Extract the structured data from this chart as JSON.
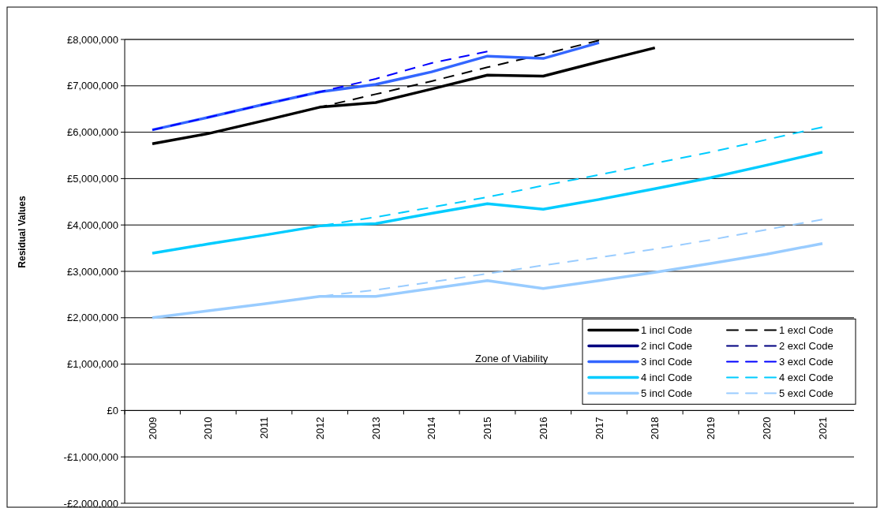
{
  "chart_data": {
    "type": "line",
    "ylabel": "Residual Values",
    "categories": [
      "2009",
      "2010",
      "2011",
      "2012",
      "2013",
      "2014",
      "2015",
      "2016",
      "2017",
      "2018",
      "2019",
      "2020",
      "2021"
    ],
    "ylim": [
      -2000000,
      8000000
    ],
    "yticks": [
      {
        "value": -2000000,
        "label": "-£2,000,000"
      },
      {
        "value": -1000000,
        "label": "-£1,000,000"
      },
      {
        "value": 0,
        "label": "£0"
      },
      {
        "value": 1000000,
        "label": "£1,000,000"
      },
      {
        "value": 2000000,
        "label": "£2,000,000"
      },
      {
        "value": 3000000,
        "label": "£3,000,000"
      },
      {
        "value": 4000000,
        "label": "£4,000,000"
      },
      {
        "value": 5000000,
        "label": "£5,000,000"
      },
      {
        "value": 6000000,
        "label": "£6,000,000"
      },
      {
        "value": 7000000,
        "label": "£7,000,000"
      },
      {
        "value": 8000000,
        "label": "£8,000,000"
      }
    ],
    "grid": "y",
    "legend": "bottom right",
    "annotations": [
      "Zone of Viability"
    ],
    "series": [
      {
        "name": "1 incl Code",
        "color": "#000000",
        "line_style": "solid",
        "values": [
          5750000,
          5970000,
          6250000,
          6540000,
          6640000,
          6930000,
          7230000,
          7210000,
          7520000,
          7820000,
          null,
          null,
          null
        ]
      },
      {
        "name": "1 excl Code",
        "color": "#000000",
        "line_style": "dashed",
        "values": [
          5750000,
          5970000,
          6250000,
          6540000,
          6820000,
          7100000,
          7400000,
          7680000,
          7980000,
          null,
          null,
          null,
          null
        ]
      },
      {
        "name": "2 incl Code",
        "color": "#000080",
        "line_style": "solid",
        "values": [
          null,
          null,
          null,
          null,
          null,
          null,
          null,
          null,
          null,
          null,
          null,
          null,
          null
        ]
      },
      {
        "name": "2 excl Code",
        "color": "#000080",
        "line_style": "dashed",
        "values": [
          null,
          null,
          null,
          null,
          null,
          null,
          null,
          null,
          null,
          null,
          null,
          null,
          null
        ]
      },
      {
        "name": "3 incl Code",
        "color": "#3366ff",
        "line_style": "solid",
        "values": [
          6050000,
          6320000,
          6600000,
          6870000,
          7030000,
          7300000,
          7640000,
          7590000,
          7930000,
          null,
          null,
          null,
          null
        ]
      },
      {
        "name": "3 excl Code",
        "color": "#0000ff",
        "line_style": "dashed",
        "values": [
          6050000,
          6320000,
          6600000,
          6870000,
          7150000,
          7490000,
          7740000,
          null,
          null,
          null,
          null,
          null,
          null
        ]
      },
      {
        "name": "4 incl Code",
        "color": "#00ccff",
        "line_style": "solid",
        "values": [
          3390000,
          3590000,
          3780000,
          3980000,
          4030000,
          4250000,
          4460000,
          4340000,
          4550000,
          4780000,
          5020000,
          5290000,
          5570000
        ]
      },
      {
        "name": "4 excl Code",
        "color": "#00ccff",
        "line_style": "dashed",
        "values": [
          3390000,
          3590000,
          3780000,
          3980000,
          4170000,
          4380000,
          4600000,
          4850000,
          5080000,
          5330000,
          5570000,
          5840000,
          6110000
        ]
      },
      {
        "name": "5 incl Code",
        "color": "#99ccff",
        "line_style": "solid",
        "values": [
          2000000,
          2150000,
          2300000,
          2460000,
          2460000,
          2630000,
          2800000,
          2630000,
          2800000,
          2980000,
          3170000,
          3370000,
          3600000
        ]
      },
      {
        "name": "5 excl Code",
        "color": "#99ccff",
        "line_style": "dashed",
        "values": [
          2000000,
          2150000,
          2300000,
          2460000,
          2600000,
          2770000,
          2950000,
          3130000,
          3300000,
          3480000,
          3680000,
          3900000,
          4120000
        ]
      }
    ]
  }
}
